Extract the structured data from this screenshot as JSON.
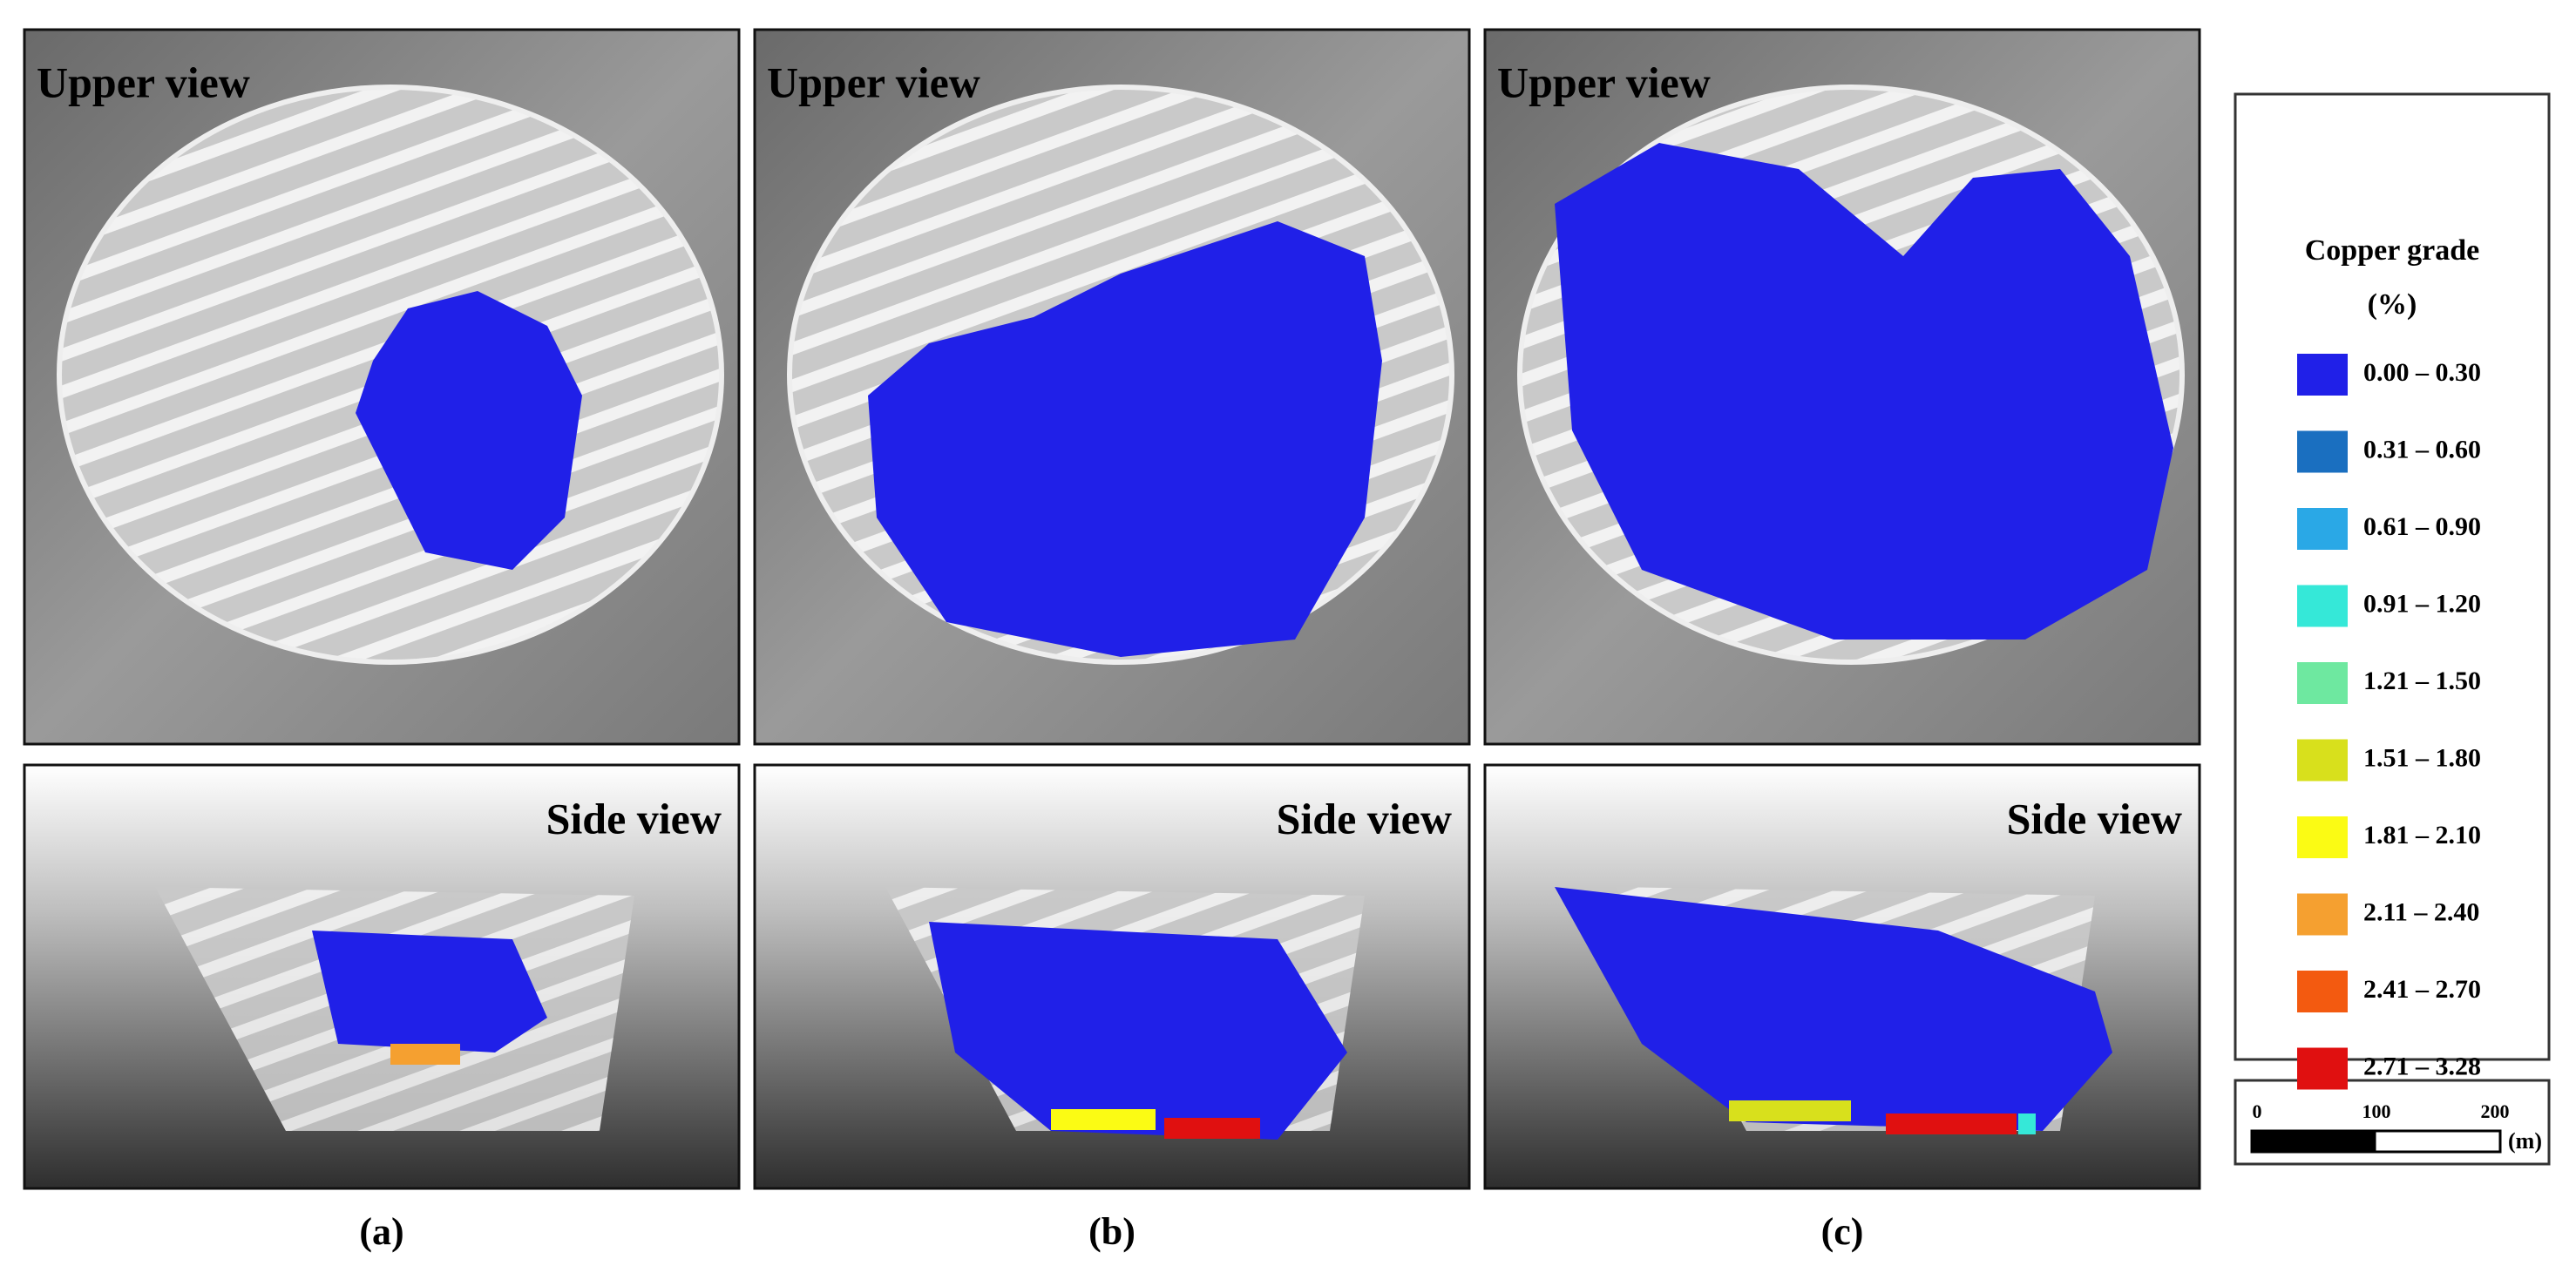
{
  "panels": [
    {
      "upper_title": "Upper view",
      "side_title": "Side view",
      "label": "(a)"
    },
    {
      "upper_title": "Upper view",
      "side_title": "Side view",
      "label": "(b)"
    },
    {
      "upper_title": "Upper view",
      "side_title": "Side view",
      "label": "(c)"
    }
  ],
  "legend": {
    "title": "Copper grade",
    "unit": "(%)",
    "items": [
      {
        "label": "0.00 – 0.30",
        "color": "#2020e8"
      },
      {
        "label": "0.31 – 0.60",
        "color": "#1a6fc0"
      },
      {
        "label": "0.61 – 0.90",
        "color": "#2aa8e6"
      },
      {
        "label": "0.91 – 1.20",
        "color": "#35e8d8"
      },
      {
        "label": "1.21 – 1.50",
        "color": "#6ee8a0"
      },
      {
        "label": "1.51 – 1.80",
        "color": "#d8e01c"
      },
      {
        "label": "1.81 – 2.10",
        "color": "#fbfb14"
      },
      {
        "label": "2.11 – 2.40",
        "color": "#f5a030"
      },
      {
        "label": "2.41 – 2.70",
        "color": "#f35a10"
      },
      {
        "label": "2.71 – 3.28",
        "color": "#e01010"
      }
    ]
  },
  "scale_bar": {
    "ticks": [
      "0",
      "100",
      "200"
    ],
    "unit": "(m)"
  }
}
